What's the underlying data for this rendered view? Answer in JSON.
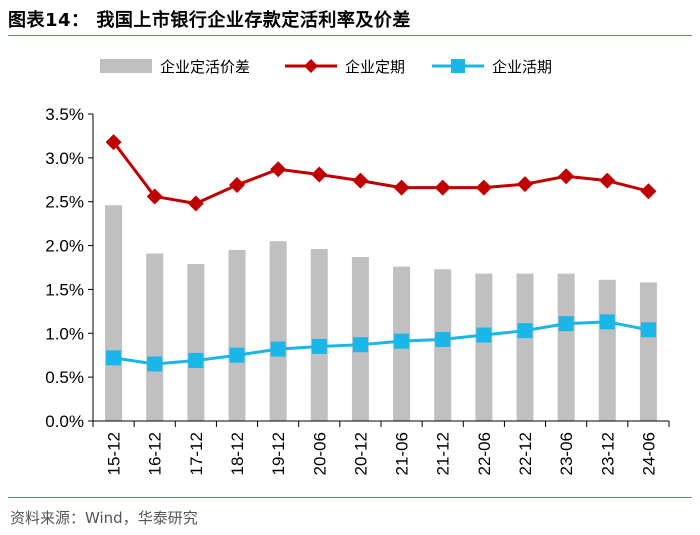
{
  "header": {
    "title": "图表14：  我国上市银行企业存款定活利率及价差"
  },
  "footer": {
    "source": "资料来源：Wind，华泰研究"
  },
  "colors": {
    "bar": "#c0c0c0",
    "fixed": "#c00000",
    "demand": "#1ab6e8",
    "rule": "#5a80b8"
  },
  "chart_data": {
    "type": "bar+line",
    "title": "我国上市银行企业存款定活利率及价差",
    "categories": [
      "15-12",
      "16-12",
      "17-12",
      "18-12",
      "19-12",
      "20-06",
      "20-12",
      "21-06",
      "21-12",
      "22-06",
      "22-12",
      "23-06",
      "23-12",
      "24-06"
    ],
    "yticks": [
      "3.5%",
      "3.0%",
      "2.5%",
      "2.0%",
      "1.5%",
      "1.0%",
      "0.5%",
      "0.0%"
    ],
    "ylim": [
      0,
      3.5
    ],
    "series": [
      {
        "name": "企业定活价差",
        "kind": "bar",
        "values": [
          2.46,
          1.91,
          1.79,
          1.95,
          2.05,
          1.96,
          1.87,
          1.76,
          1.73,
          1.68,
          1.68,
          1.68,
          1.61,
          1.58
        ]
      },
      {
        "name": "企业定期",
        "kind": "line",
        "marker": "diamond",
        "values": [
          3.18,
          2.56,
          2.48,
          2.69,
          2.87,
          2.81,
          2.74,
          2.66,
          2.66,
          2.66,
          2.7,
          2.79,
          2.74,
          2.62
        ]
      },
      {
        "name": "企业活期",
        "kind": "line",
        "marker": "square",
        "values": [
          0.72,
          0.65,
          0.69,
          0.75,
          0.82,
          0.85,
          0.87,
          0.91,
          0.93,
          0.98,
          1.03,
          1.11,
          1.13,
          1.04
        ]
      }
    ],
    "legend_position": "top"
  }
}
